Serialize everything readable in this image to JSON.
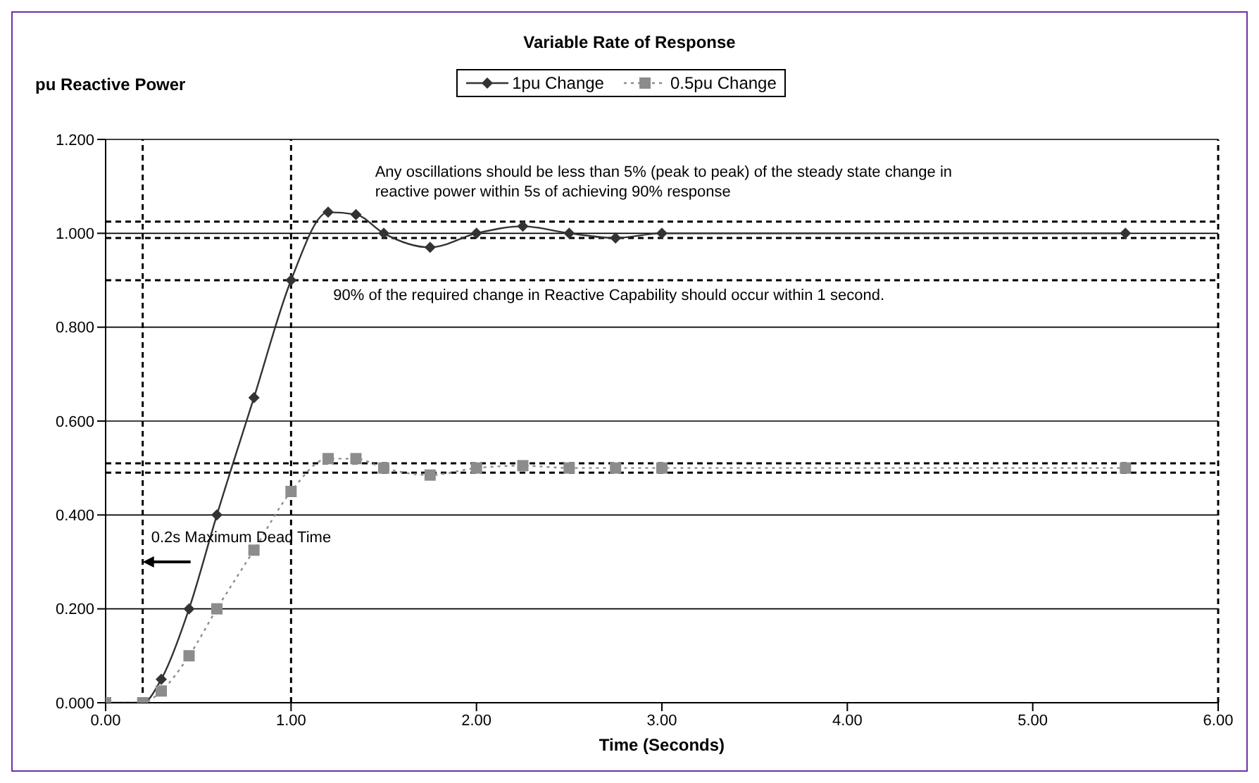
{
  "chart_data": {
    "type": "line",
    "title": "Variable Rate of Response",
    "xlabel": "Time (Seconds)",
    "ylabel": "pu Reactive Power",
    "x": [
      0,
      0.2,
      0.3,
      0.45,
      0.6,
      0.8,
      1.0,
      1.2,
      1.35,
      1.5,
      1.75,
      2.0,
      2.25,
      2.5,
      2.75,
      3.0,
      5.5
    ],
    "series": [
      {
        "name": "1pu Change",
        "color": "#333333",
        "marker": "diamond",
        "line_style": "solid",
        "values": [
          0,
          0,
          0.05,
          0.2,
          0.4,
          0.65,
          0.9,
          1.045,
          1.04,
          1.0,
          0.97,
          1.0,
          1.015,
          1.0,
          0.99,
          1.0,
          1.0
        ]
      },
      {
        "name": "0.5pu Change",
        "color": "#8c8c8c",
        "marker": "square",
        "line_style": "dotted",
        "values": [
          0,
          0,
          0.025,
          0.1,
          0.2,
          0.325,
          0.45,
          0.52,
          0.52,
          0.5,
          0.485,
          0.5,
          0.505,
          0.5,
          0.5,
          0.5,
          0.5
        ]
      }
    ],
    "xlim": [
      0,
      6
    ],
    "xticks": [
      {
        "value": 0,
        "label": "0.00"
      },
      {
        "value": 1,
        "label": "1.00"
      },
      {
        "value": 2,
        "label": "2.00"
      },
      {
        "value": 3,
        "label": "3.00"
      },
      {
        "value": 4,
        "label": "4.00"
      },
      {
        "value": 5,
        "label": "5.00"
      },
      {
        "value": 6,
        "label": "6.00"
      }
    ],
    "ylim": [
      0,
      1.2
    ],
    "yticks": [
      {
        "value": 0,
        "label": "0.000"
      },
      {
        "value": 0.2,
        "label": "0.200"
      },
      {
        "value": 0.4,
        "label": "0.400"
      },
      {
        "value": 0.6,
        "label": "0.600"
      },
      {
        "value": 0.8,
        "label": "0.800"
      },
      {
        "value": 1.0,
        "label": "1.000"
      },
      {
        "value": 1.2,
        "label": "1.200"
      }
    ],
    "grid": "y",
    "legend": "top",
    "ref_lines": [
      {
        "axis": "x",
        "value": 0.2,
        "color": "#000000",
        "line_style": "dashed"
      },
      {
        "axis": "x",
        "value": 1.0,
        "color": "#000000",
        "line_style": "dashed"
      },
      {
        "axis": "x",
        "value": 6,
        "color": "#000000",
        "line_style": "dashed"
      },
      {
        "axis": "y",
        "value": 0.9,
        "color": "#000000",
        "line_style": "dashed"
      },
      {
        "axis": "y",
        "value": 1.025,
        "color": "#000000",
        "line_style": "dashed"
      },
      {
        "axis": "y",
        "value": 0.99,
        "color": "#000000",
        "line_style": "dashed"
      },
      {
        "axis": "y",
        "value": 0.51,
        "color": "#000000",
        "line_style": "dashed"
      },
      {
        "axis": "y",
        "value": 0.49,
        "color": "#000000",
        "line_style": "dashed"
      }
    ],
    "annotations": [
      {
        "text": "0.2s Maximum Dead Time",
        "x": 0.2,
        "y": 0.3
      },
      {
        "text": "90% of the required change in Reactive Capability should occur within 1 second.",
        "x": 1.0,
        "y": 0.9
      },
      {
        "text": "Any oscillations should be less than 5% (peak to peak) of the steady state change in reactive power within 5s of achieving 90% response",
        "x": 2.0,
        "y": 1.025
      }
    ]
  }
}
